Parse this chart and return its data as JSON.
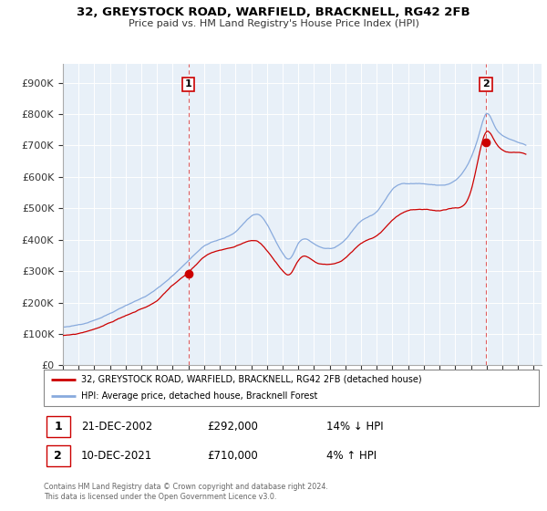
{
  "title": "32, GREYSTOCK ROAD, WARFIELD, BRACKNELL, RG42 2FB",
  "subtitle": "Price paid vs. HM Land Registry's House Price Index (HPI)",
  "yticks": [
    0,
    100000,
    200000,
    300000,
    400000,
    500000,
    600000,
    700000,
    800000,
    900000
  ],
  "ylim": [
    0,
    960000
  ],
  "xlim_start": 1995.0,
  "xlim_end": 2025.5,
  "marker1_x": 2003.0,
  "marker1_y": 292000,
  "marker1_label": "1",
  "marker1_date": "21-DEC-2002",
  "marker1_price": "£292,000",
  "marker1_hpi": "14% ↓ HPI",
  "marker2_x": 2021.95,
  "marker2_y": 710000,
  "marker2_label": "2",
  "marker2_date": "10-DEC-2021",
  "marker2_price": "£710,000",
  "marker2_hpi": "4% ↑ HPI",
  "line_price_color": "#cc0000",
  "line_hpi_color": "#88aadd",
  "vline_color": "#dd4444",
  "chart_bg": "#e8f0f8",
  "grid_color": "#ffffff",
  "legend_label1": "32, GREYSTOCK ROAD, WARFIELD, BRACKNELL, RG42 2FB (detached house)",
  "legend_label2": "HPI: Average price, detached house, Bracknell Forest",
  "footer": "Contains HM Land Registry data © Crown copyright and database right 2024.\nThis data is licensed under the Open Government Licence v3.0."
}
